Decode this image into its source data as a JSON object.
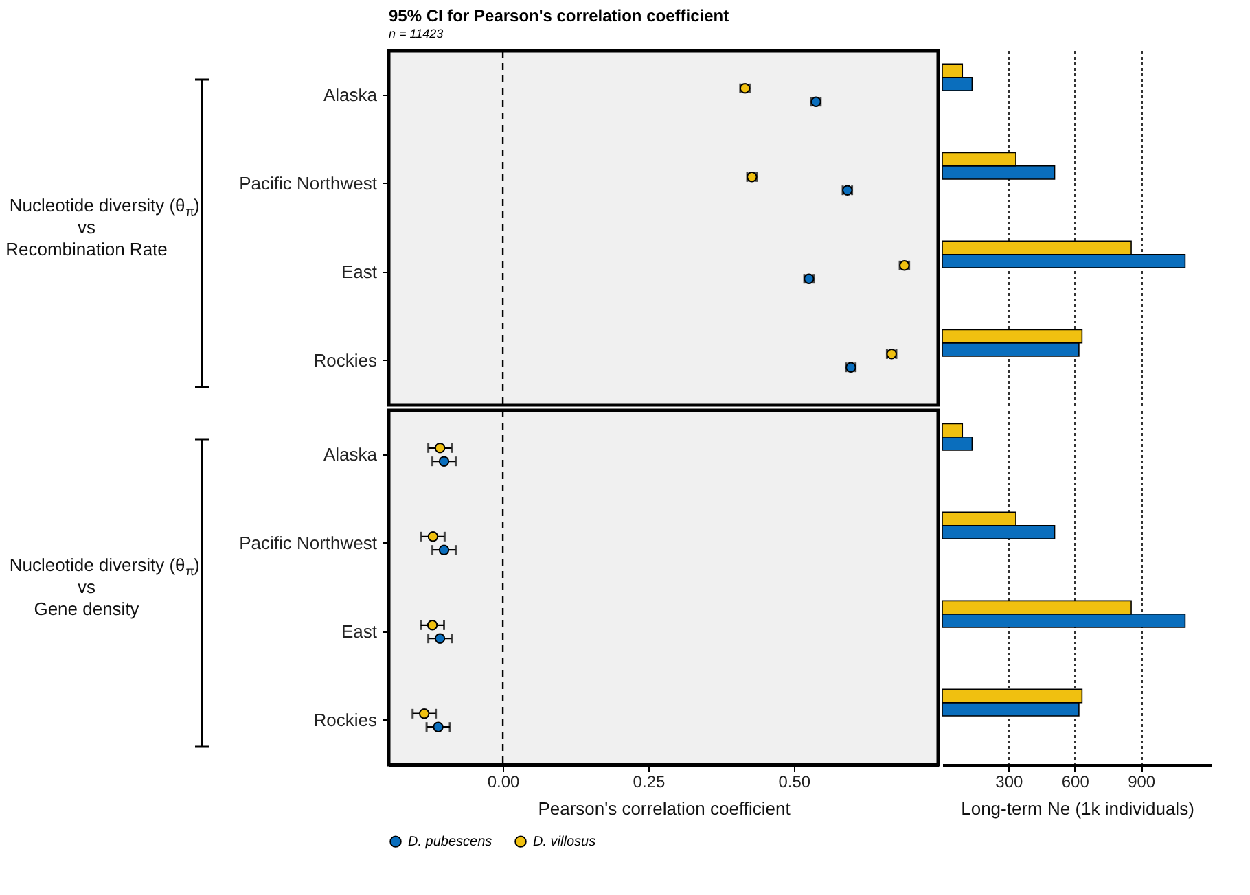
{
  "chart_data": [
    {
      "type": "scatter",
      "orientation": "horizontal",
      "title": "95% CI for Pearson's correlation coefficient",
      "subtitle": "n =  11423",
      "ylabel": "Nucleotide diversity (θ$_{π}$)\nvs\nRecombination Rate",
      "categories": [
        "Alaska",
        "Pacific Northwest",
        "East",
        "Rockies"
      ],
      "series": [
        {
          "color": "#0a6ebd",
          "values": [
            0.538,
            0.592,
            0.526,
            0.598
          ],
          "errors": [
            0.008,
            0.008,
            0.008,
            0.008
          ]
        },
        {
          "color": "#f0c010",
          "values": [
            0.416,
            0.428,
            0.69,
            0.668
          ],
          "errors": [
            0.008,
            0.008,
            0.008,
            0.008
          ]
        }
      ],
      "xlim": [
        -0.196,
        0.748
      ],
      "tick_labels": "y",
      "marker": "circle",
      "ref_lines": [
        {
          "axis": "x",
          "value": 0,
          "line_style": "dashed"
        }
      ]
    },
    {
      "type": "bar",
      "orientation": "horizontal",
      "categories": [
        null,
        null,
        null,
        null
      ],
      "series": [
        {
          "color": "#0a6ebd",
          "values": [
            135,
            509,
            1100,
            619
          ]
        },
        {
          "color": "#f0c010",
          "values": [
            91,
            333,
            856,
            633
          ]
        }
      ],
      "xlim": [
        0,
        1220
      ],
      "xticks": [
        300,
        600,
        900
      ],
      "grid": "x",
      "tick_labels": false
    },
    {
      "type": "scatter",
      "orientation": "horizontal",
      "xlabel": "Pearson's correlation coefficient",
      "ylabel": "Nucleotide diversity (θ$_{π}$)\nvs\nGene density",
      "categories": [
        "Alaska",
        "Pacific Northwest",
        "East",
        "Rockies"
      ],
      "series": [
        {
          "name": "D. pubescens",
          "color": "#0a6ebd",
          "values": [
            -0.101,
            -0.101,
            -0.108,
            -0.111
          ],
          "errors": [
            0.02,
            0.02,
            0.02,
            0.02
          ]
        },
        {
          "name": "D. villosus",
          "color": "#f0c010",
          "values": [
            -0.108,
            -0.12,
            -0.121,
            -0.135
          ],
          "errors": [
            0.02,
            0.02,
            0.02,
            0.02
          ]
        }
      ],
      "xlim": [
        -0.196,
        0.748
      ],
      "xticks": [
        {
          "value": 0,
          "label": "0.00"
        },
        {
          "value": 0.25,
          "label": "0.25"
        },
        {
          "value": 0.5,
          "label": "0.50"
        }
      ],
      "marker": "circle",
      "legend": "bottom",
      "ref_lines": [
        {
          "axis": "x",
          "value": 0,
          "line_style": "dashed"
        }
      ]
    },
    {
      "type": "bar",
      "orientation": "horizontal",
      "xlabel": "Long-term Ne (1k individuals)",
      "categories": [
        null,
        null,
        null,
        null
      ],
      "series": [
        {
          "color": "#0a6ebd",
          "values": [
            135,
            509,
            1100,
            619
          ]
        },
        {
          "color": "#f0c010",
          "values": [
            91,
            333,
            856,
            633
          ]
        }
      ],
      "xlim": [
        0,
        1220
      ],
      "xticks": [
        300,
        600,
        900
      ],
      "grid": "x",
      "tick_labels": "x"
    }
  ]
}
